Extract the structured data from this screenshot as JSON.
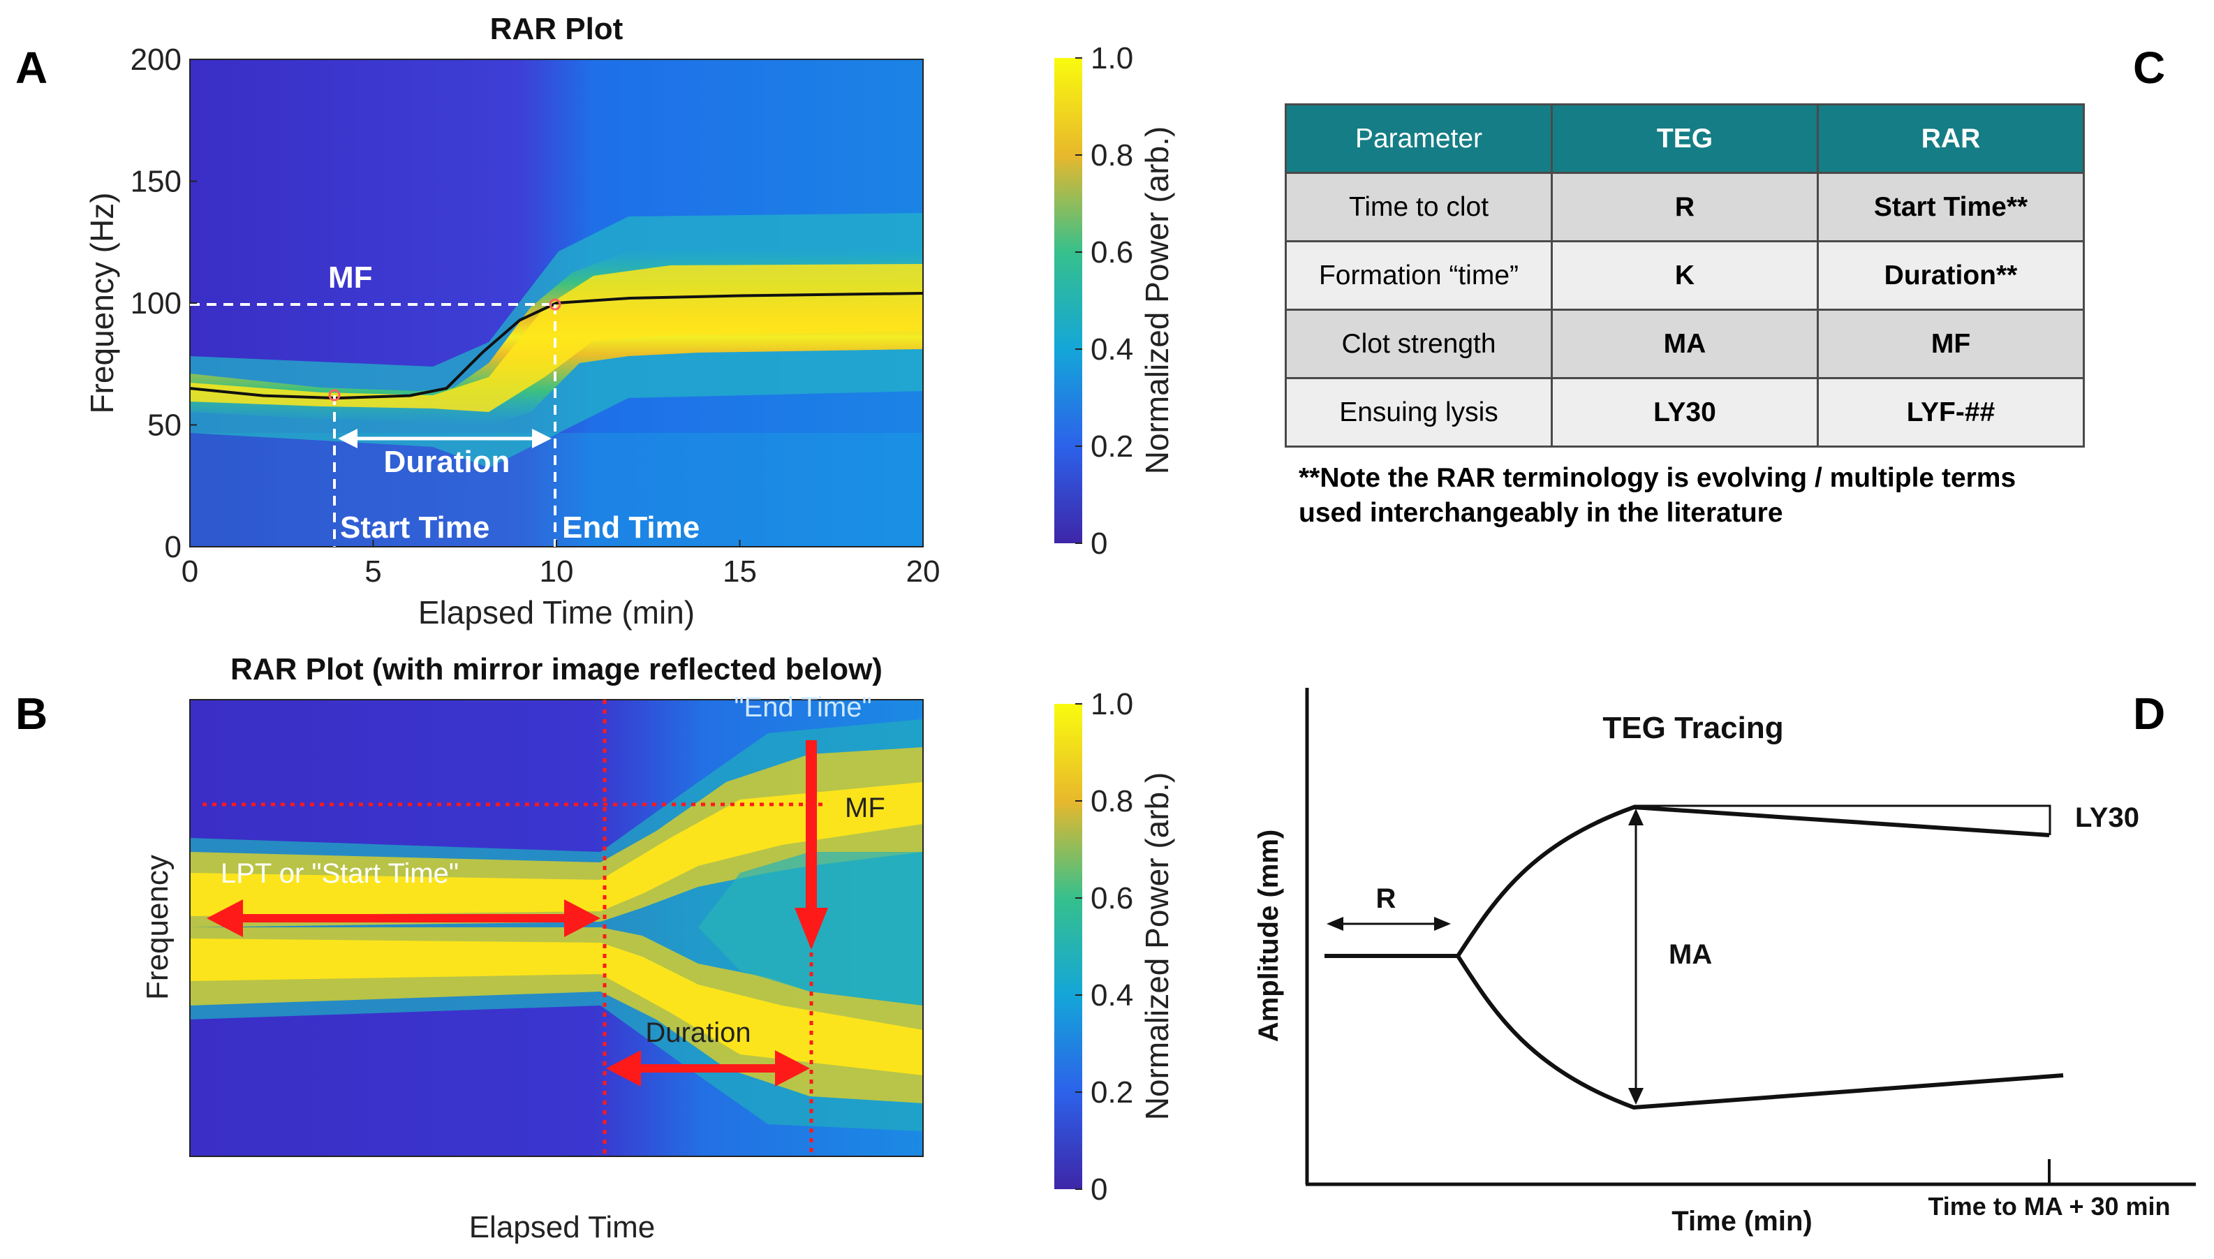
{
  "panels": {
    "a": "A",
    "b": "B",
    "c": "C",
    "d": "D"
  },
  "colors": {
    "accent_red": "#ff1a1a",
    "table_header": "#157d85"
  },
  "chart_data": [
    {
      "id": "A",
      "type": "heatmap",
      "title": "RAR Plot",
      "xlabel": "Elapsed Time (min)",
      "ylabel": "Frequency (Hz)",
      "xlim": [
        0,
        20
      ],
      "ylim": [
        0,
        200
      ],
      "xticks": [
        "0",
        "5",
        "10",
        "15",
        "20"
      ],
      "yticks": [
        "0",
        "50",
        "100",
        "150",
        "200"
      ],
      "mf_curve": {
        "x": [
          0,
          2,
          4,
          6,
          7,
          8,
          9,
          10,
          12,
          15,
          20
        ],
        "y": [
          65,
          62,
          61,
          62,
          65,
          80,
          93,
          100,
          102,
          103,
          104
        ]
      },
      "mf_value": 100,
      "start_time": 4,
      "end_time": 10,
      "labels": {
        "mf": "MF",
        "duration": "Duration",
        "start": "Start Time",
        "end": "End Time"
      },
      "colorbar": {
        "label": "Normalized Power (arb.)",
        "ticks": [
          "0",
          "0.2",
          "0.4",
          "0.6",
          "0.8",
          "1.0"
        ],
        "range": [
          0,
          1
        ]
      }
    },
    {
      "id": "B",
      "type": "heatmap",
      "title": "RAR Plot (with mirror image reflected below)",
      "xlabel": "Elapsed Time",
      "ylabel": "Frequency",
      "labels": {
        "end": "\"End Time\"",
        "mf": "MF",
        "lpt": "LPT or \"Start Time\"",
        "duration": "Duration"
      },
      "colorbar": {
        "label": "Normalized Power (arb.)",
        "ticks": [
          "0",
          "0.2",
          "0.4",
          "0.6",
          "0.8",
          "1.0"
        ],
        "range": [
          0,
          1
        ]
      }
    },
    {
      "id": "D",
      "type": "line",
      "title": "TEG Tracing",
      "xlabel": "Time (min)",
      "ylabel": "Amplitude (mm)",
      "xtick": "Time to MA + 30 min",
      "labels": {
        "r": "R",
        "ma": "MA",
        "ly30": "LY30"
      }
    }
  ],
  "table": {
    "headers": [
      "Parameter",
      "TEG",
      "RAR"
    ],
    "rows": [
      [
        "Time to clot",
        "R",
        "Start Time**"
      ],
      [
        "Formation “time”",
        "K",
        "Duration**"
      ],
      [
        "Clot strength",
        "MA",
        "MF"
      ],
      [
        "Ensuing lysis",
        "LY30",
        "LYF-##"
      ]
    ],
    "note_line1": "**Note the RAR terminology is evolving / multiple terms",
    "note_line2": "used interchangeably in the literature"
  }
}
